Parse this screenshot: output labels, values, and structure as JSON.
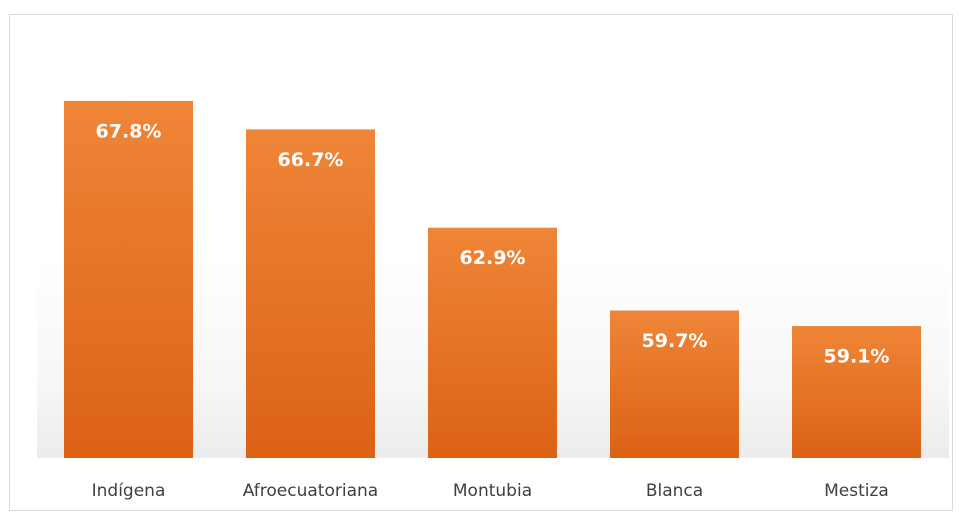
{
  "chart_data": {
    "type": "bar",
    "categories": [
      "Indígena",
      "Afroecuatoriana",
      "Montubia",
      "Blanca",
      "Mestiza"
    ],
    "values": [
      67.8,
      66.7,
      62.9,
      59.7,
      59.1
    ],
    "value_labels": [
      "67.8%",
      "66.7%",
      "62.9%",
      "59.7%",
      "59.1%"
    ],
    "color": "#e8742a",
    "ylim": [
      54,
      70
    ]
  }
}
